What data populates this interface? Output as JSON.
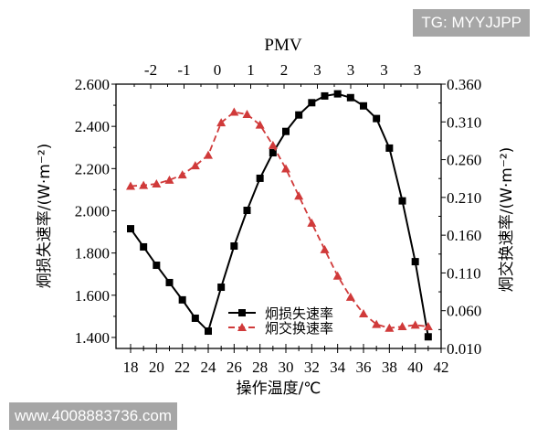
{
  "watermarks": {
    "top_right": "TG: MYYJJPP",
    "bottom_left": "www.4008883736.com"
  },
  "chart_data": {
    "type": "line",
    "title": "",
    "top_axis_title": "PMV",
    "top_tick_labels": [
      "-2",
      "-1",
      "0",
      "1",
      "2",
      "3",
      "3",
      "3",
      "3"
    ],
    "xlabel": "操作温度/℃",
    "ylabel_left": "炯损失速率/(W·m⁻²)",
    "ylabel_right": "炯交换速率/(W·m⁻²)",
    "xlim": [
      17,
      42
    ],
    "x_ticks": [
      18,
      20,
      22,
      24,
      26,
      28,
      30,
      32,
      34,
      36,
      38,
      40,
      42
    ],
    "ylim_left": [
      1.348,
      2.6
    ],
    "y_ticks_left": [
      "1.400",
      "1.600",
      "1.800",
      "2.000",
      "2.200",
      "2.400",
      "2.600"
    ],
    "ylim_right": [
      0.01,
      0.36
    ],
    "y_ticks_right": [
      "0.010",
      "0.060",
      "0.110",
      "0.160",
      "0.210",
      "0.260",
      "0.310",
      "0.360"
    ],
    "grid": false,
    "legend_position": "lower center",
    "x": [
      18,
      19,
      20,
      21,
      22,
      23,
      24,
      25,
      26,
      27,
      28,
      29,
      30,
      31,
      32,
      33,
      34,
      35,
      36,
      37,
      38,
      39,
      40,
      41
    ],
    "series": [
      {
        "name": "炯损失速率",
        "axis": "left",
        "color": "#000000",
        "marker": "square",
        "line": "solid",
        "values": [
          1.915,
          1.829,
          1.742,
          1.66,
          1.578,
          1.491,
          1.43,
          1.638,
          1.833,
          2.002,
          2.154,
          2.275,
          2.376,
          2.454,
          2.512,
          2.544,
          2.554,
          2.536,
          2.497,
          2.437,
          2.297,
          2.047,
          1.759,
          1.403
        ]
      },
      {
        "name": "炯交换速率",
        "axis": "right",
        "color": "#d03a3a",
        "marker": "triangle",
        "line": "dashed",
        "values": [
          0.225,
          0.226,
          0.228,
          0.233,
          0.24,
          0.252,
          0.266,
          0.309,
          0.323,
          0.32,
          0.306,
          0.279,
          0.248,
          0.212,
          0.176,
          0.141,
          0.106,
          0.078,
          0.056,
          0.042,
          0.037,
          0.039,
          0.041,
          0.039
        ]
      }
    ]
  }
}
